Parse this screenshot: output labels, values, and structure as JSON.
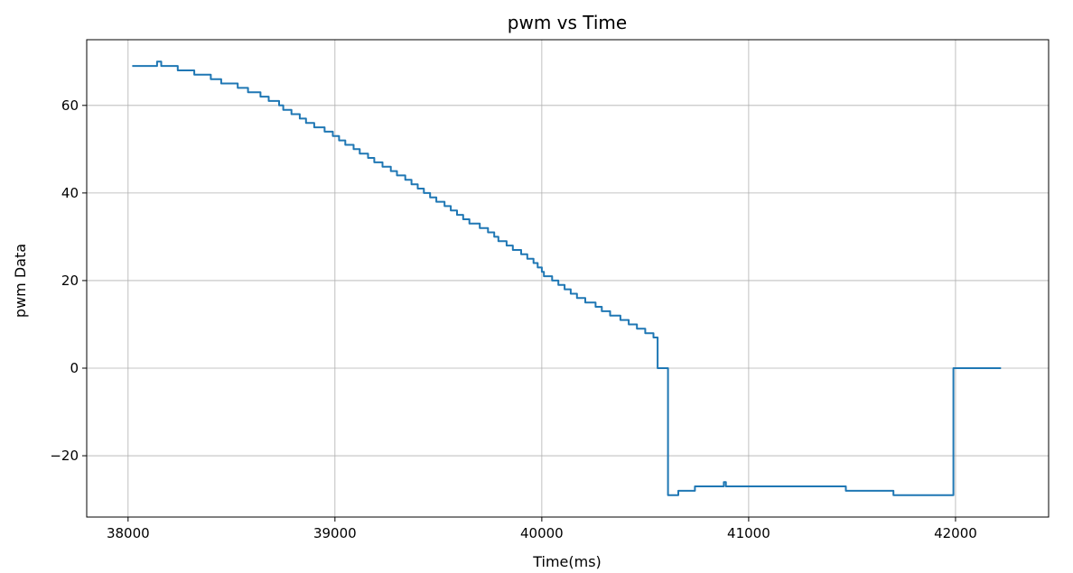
{
  "chart_data": {
    "type": "line",
    "title": "pwm vs Time",
    "xlabel": "Time(ms)",
    "ylabel": "pwm Data",
    "xlim": [
      37800,
      42450
    ],
    "ylim": [
      -34,
      75
    ],
    "xticks": [
      38000,
      39000,
      40000,
      41000,
      42000
    ],
    "xtick_labels": [
      "38000",
      "39000",
      "40000",
      "41000",
      "42000"
    ],
    "yticks": [
      -20,
      0,
      20,
      40,
      60
    ],
    "ytick_labels": [
      "−20",
      "0",
      "20",
      "40",
      "60"
    ],
    "grid": true,
    "legend": "none",
    "series": [
      {
        "color": "#1f77b4",
        "step": true,
        "points": [
          [
            38020,
            69
          ],
          [
            38120,
            69
          ],
          [
            38140,
            70
          ],
          [
            38160,
            69
          ],
          [
            38240,
            68
          ],
          [
            38320,
            67
          ],
          [
            38400,
            66
          ],
          [
            38450,
            65
          ],
          [
            38530,
            64
          ],
          [
            38580,
            63
          ],
          [
            38640,
            62
          ],
          [
            38680,
            61
          ],
          [
            38730,
            60
          ],
          [
            38750,
            59
          ],
          [
            38790,
            58
          ],
          [
            38830,
            57
          ],
          [
            38860,
            56
          ],
          [
            38900,
            55
          ],
          [
            38950,
            54
          ],
          [
            38990,
            53
          ],
          [
            39020,
            52
          ],
          [
            39050,
            51
          ],
          [
            39090,
            50
          ],
          [
            39120,
            49
          ],
          [
            39160,
            48
          ],
          [
            39190,
            47
          ],
          [
            39230,
            46
          ],
          [
            39270,
            45
          ],
          [
            39300,
            44
          ],
          [
            39340,
            43
          ],
          [
            39370,
            42
          ],
          [
            39400,
            41
          ],
          [
            39430,
            40
          ],
          [
            39460,
            39
          ],
          [
            39490,
            38
          ],
          [
            39530,
            37
          ],
          [
            39560,
            36
          ],
          [
            39590,
            35
          ],
          [
            39620,
            34
          ],
          [
            39650,
            33
          ],
          [
            39700,
            32
          ],
          [
            39740,
            31
          ],
          [
            39770,
            30
          ],
          [
            39790,
            29
          ],
          [
            39830,
            28
          ],
          [
            39860,
            27
          ],
          [
            39900,
            26
          ],
          [
            39930,
            25
          ],
          [
            39960,
            24
          ],
          [
            39980,
            23
          ],
          [
            40000,
            22
          ],
          [
            40010,
            21
          ],
          [
            40050,
            20
          ],
          [
            40080,
            19
          ],
          [
            40110,
            18
          ],
          [
            40140,
            17
          ],
          [
            40170,
            16
          ],
          [
            40210,
            15
          ],
          [
            40260,
            14
          ],
          [
            40290,
            13
          ],
          [
            40330,
            12
          ],
          [
            40380,
            11
          ],
          [
            40420,
            10
          ],
          [
            40460,
            9
          ],
          [
            40500,
            8
          ],
          [
            40540,
            7
          ],
          [
            40560,
            0
          ],
          [
            40610,
            -29
          ],
          [
            40660,
            -28
          ],
          [
            40740,
            -27
          ],
          [
            40870,
            -27
          ],
          [
            40880,
            -26
          ],
          [
            40890,
            -27
          ],
          [
            41470,
            -28
          ],
          [
            41700,
            -29
          ],
          [
            41990,
            0
          ],
          [
            42220,
            0
          ]
        ]
      }
    ]
  }
}
